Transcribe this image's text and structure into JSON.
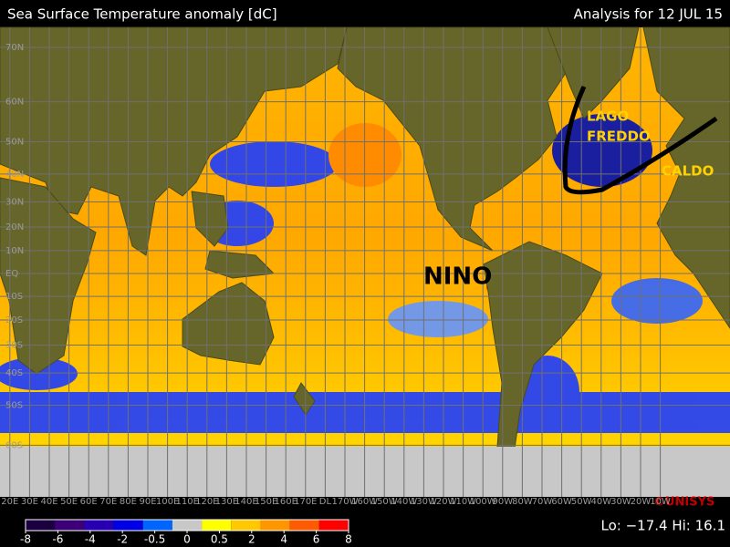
{
  "header": {
    "title": "Sea Surface Temperature anomaly [dC]",
    "analysis": "Analysis for 12 JUL 15"
  },
  "annotations": {
    "cold_line1": "LAGO",
    "cold_line2": "FREDDO",
    "warm": "CALDO",
    "nino": "NINO"
  },
  "latitudes": [
    {
      "value": 70,
      "label": "70N"
    },
    {
      "value": 60,
      "label": "60N"
    },
    {
      "value": 50,
      "label": "50N"
    },
    {
      "value": 40,
      "label": "40N"
    },
    {
      "value": 30,
      "label": "30N"
    },
    {
      "value": 20,
      "label": "20N"
    },
    {
      "value": 10,
      "label": "10N"
    },
    {
      "value": 0,
      "label": "EQ"
    },
    {
      "value": -10,
      "label": "10S"
    },
    {
      "value": -20,
      "label": "20S"
    },
    {
      "value": -30,
      "label": "30S"
    },
    {
      "value": -40,
      "label": "40S"
    },
    {
      "value": -50,
      "label": "50S"
    },
    {
      "value": -60,
      "label": "60S"
    }
  ],
  "longitudes": [
    {
      "value": 20,
      "label": "20E"
    },
    {
      "value": 30,
      "label": "30E"
    },
    {
      "value": 40,
      "label": "40E"
    },
    {
      "value": 50,
      "label": "50E"
    },
    {
      "value": 60,
      "label": "60E"
    },
    {
      "value": 70,
      "label": "70E"
    },
    {
      "value": 80,
      "label": "80E"
    },
    {
      "value": 90,
      "label": "90E"
    },
    {
      "value": 100,
      "label": "100E"
    },
    {
      "value": 110,
      "label": "110E"
    },
    {
      "value": 120,
      "label": "120E"
    },
    {
      "value": 130,
      "label": "130E"
    },
    {
      "value": 140,
      "label": "140E"
    },
    {
      "value": 150,
      "label": "150E"
    },
    {
      "value": 160,
      "label": "160E"
    },
    {
      "value": 170,
      "label": "170E"
    },
    {
      "value": 180,
      "label": "DL"
    },
    {
      "value": 190,
      "label": "170W"
    },
    {
      "value": 200,
      "label": "160W"
    },
    {
      "value": 210,
      "label": "150W"
    },
    {
      "value": 220,
      "label": "140W"
    },
    {
      "value": 230,
      "label": "130W"
    },
    {
      "value": 240,
      "label": "120W"
    },
    {
      "value": 250,
      "label": "110W"
    },
    {
      "value": 260,
      "label": "100W"
    },
    {
      "value": 270,
      "label": "90W"
    },
    {
      "value": 280,
      "label": "80W"
    },
    {
      "value": 290,
      "label": "70W"
    },
    {
      "value": 300,
      "label": "60W"
    },
    {
      "value": 310,
      "label": "50W"
    },
    {
      "value": 320,
      "label": "40W"
    },
    {
      "value": 330,
      "label": "30W"
    },
    {
      "value": 340,
      "label": "20W"
    },
    {
      "value": 350,
      "label": "10W"
    }
  ],
  "colorbar": {
    "ticks": [
      -8,
      -6,
      -4,
      -2,
      -0.5,
      0,
      0.5,
      2,
      4,
      6,
      8
    ],
    "colors": [
      "#1a0040",
      "#3c0078",
      "#2800b4",
      "#0000e6",
      "#0064ff",
      "#c8c8c8",
      "#ffff00",
      "#ffc800",
      "#ff9600",
      "#ff5a00",
      "#ff0000"
    ]
  },
  "credit": "©UNISYS",
  "stats": "Lo: −17.4  Hi: 16.1"
}
